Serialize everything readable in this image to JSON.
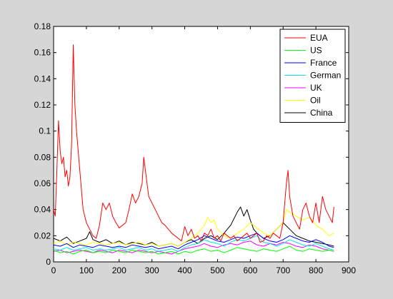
{
  "chart_data": {
    "type": "line",
    "title": "",
    "xlabel": "",
    "ylabel": "",
    "xlim": [
      0,
      900
    ],
    "ylim": [
      0,
      0.18
    ],
    "xticks": [
      0,
      100,
      200,
      300,
      400,
      500,
      600,
      700,
      800,
      900
    ],
    "yticks": [
      0,
      0.02,
      0.04,
      0.06,
      0.08,
      0.1,
      0.12,
      0.14,
      0.16,
      0.18
    ],
    "xtick_labels": [
      "0",
      "100",
      "200",
      "300",
      "400",
      "500",
      "600",
      "700",
      "800",
      "900"
    ],
    "ytick_labels": [
      "0",
      "0.02",
      "0.04",
      "0.06",
      "0.08",
      "0.1",
      "0.12",
      "0.14",
      "0.16",
      "0.18"
    ],
    "grid": false,
    "legend_position": "top-right",
    "series": [
      {
        "name": "EUA",
        "color": "#ff0000",
        "x": [
          0,
          5,
          10,
          15,
          20,
          25,
          30,
          35,
          40,
          45,
          50,
          55,
          60,
          65,
          70,
          75,
          80,
          90,
          100,
          110,
          120,
          130,
          140,
          150,
          160,
          170,
          180,
          190,
          200,
          210,
          220,
          230,
          240,
          250,
          260,
          270,
          275,
          280,
          290,
          300,
          310,
          320,
          330,
          340,
          350,
          360,
          370,
          380,
          390,
          400,
          410,
          420,
          430,
          440,
          450,
          460,
          470,
          480,
          490,
          500,
          510,
          520,
          530,
          540,
          550,
          560,
          570,
          580,
          590,
          600,
          610,
          620,
          630,
          640,
          650,
          660,
          670,
          680,
          690,
          700,
          710,
          715,
          720,
          730,
          740,
          750,
          760,
          770,
          780,
          790,
          800,
          810,
          820,
          830,
          840,
          850,
          855
        ],
        "values": [
          0.04,
          0.035,
          0.07,
          0.108,
          0.085,
          0.075,
          0.08,
          0.065,
          0.07,
          0.058,
          0.065,
          0.09,
          0.166,
          0.12,
          0.1,
          0.085,
          0.07,
          0.04,
          0.03,
          0.025,
          0.02,
          0.018,
          0.028,
          0.045,
          0.04,
          0.045,
          0.035,
          0.03,
          0.026,
          0.028,
          0.03,
          0.04,
          0.052,
          0.045,
          0.05,
          0.06,
          0.08,
          0.07,
          0.05,
          0.045,
          0.04,
          0.035,
          0.03,
          0.028,
          0.025,
          0.022,
          0.02,
          0.018,
          0.016,
          0.027,
          0.02,
          0.025,
          0.018,
          0.02,
          0.016,
          0.022,
          0.02,
          0.025,
          0.018,
          0.02,
          0.016,
          0.022,
          0.02,
          0.018,
          0.02,
          0.016,
          0.018,
          0.02,
          0.022,
          0.018,
          0.02,
          0.022,
          0.015,
          0.016,
          0.02,
          0.018,
          0.022,
          0.02,
          0.018,
          0.03,
          0.06,
          0.07,
          0.05,
          0.035,
          0.03,
          0.025,
          0.04,
          0.045,
          0.035,
          0.03,
          0.045,
          0.03,
          0.05,
          0.04,
          0.035,
          0.03,
          0.042
        ]
      },
      {
        "name": "US",
        "color": "#00ff00",
        "x": [
          0,
          20,
          40,
          60,
          80,
          100,
          120,
          140,
          160,
          180,
          200,
          220,
          240,
          260,
          280,
          300,
          320,
          340,
          360,
          380,
          400,
          420,
          440,
          460,
          480,
          500,
          520,
          540,
          560,
          580,
          600,
          620,
          640,
          660,
          680,
          700,
          720,
          740,
          760,
          780,
          800,
          820,
          840,
          855
        ],
        "values": [
          0.009,
          0.007,
          0.008,
          0.006,
          0.008,
          0.009,
          0.007,
          0.008,
          0.007,
          0.009,
          0.008,
          0.007,
          0.009,
          0.008,
          0.007,
          0.008,
          0.006,
          0.007,
          0.008,
          0.006,
          0.008,
          0.007,
          0.009,
          0.01,
          0.008,
          0.009,
          0.007,
          0.009,
          0.011,
          0.01,
          0.009,
          0.008,
          0.01,
          0.009,
          0.008,
          0.01,
          0.012,
          0.009,
          0.008,
          0.01,
          0.009,
          0.008,
          0.009,
          0.008
        ]
      },
      {
        "name": "France",
        "color": "#0000ff",
        "x": [
          0,
          20,
          40,
          60,
          80,
          100,
          120,
          140,
          160,
          180,
          200,
          220,
          240,
          260,
          280,
          300,
          320,
          340,
          360,
          380,
          400,
          420,
          440,
          460,
          480,
          500,
          520,
          540,
          560,
          580,
          600,
          620,
          640,
          660,
          680,
          700,
          720,
          740,
          760,
          780,
          800,
          820,
          840,
          855
        ],
        "values": [
          0.013,
          0.012,
          0.014,
          0.011,
          0.013,
          0.012,
          0.011,
          0.013,
          0.012,
          0.011,
          0.012,
          0.011,
          0.013,
          0.012,
          0.011,
          0.012,
          0.01,
          0.011,
          0.012,
          0.01,
          0.013,
          0.015,
          0.017,
          0.02,
          0.018,
          0.016,
          0.015,
          0.017,
          0.019,
          0.018,
          0.02,
          0.022,
          0.018,
          0.016,
          0.015,
          0.017,
          0.02,
          0.018,
          0.016,
          0.015,
          0.017,
          0.015,
          0.012,
          0.011
        ]
      },
      {
        "name": "German",
        "color": "#00e5e5",
        "x": [
          0,
          20,
          40,
          60,
          80,
          100,
          120,
          140,
          160,
          180,
          200,
          220,
          240,
          260,
          280,
          300,
          320,
          340,
          360,
          380,
          400,
          420,
          440,
          460,
          480,
          500,
          520,
          540,
          560,
          580,
          600,
          620,
          640,
          660,
          680,
          700,
          720,
          740,
          760,
          780,
          800,
          820,
          840,
          855
        ],
        "values": [
          0.01,
          0.009,
          0.011,
          0.009,
          0.01,
          0.011,
          0.009,
          0.01,
          0.009,
          0.01,
          0.011,
          0.009,
          0.01,
          0.011,
          0.009,
          0.01,
          0.008,
          0.009,
          0.01,
          0.008,
          0.011,
          0.013,
          0.014,
          0.017,
          0.015,
          0.014,
          0.012,
          0.015,
          0.017,
          0.016,
          0.018,
          0.02,
          0.015,
          0.014,
          0.012,
          0.014,
          0.017,
          0.015,
          0.013,
          0.012,
          0.014,
          0.012,
          0.01,
          0.009
        ]
      },
      {
        "name": "UK",
        "color": "#ff00ff",
        "x": [
          0,
          20,
          40,
          60,
          80,
          100,
          120,
          140,
          160,
          180,
          200,
          220,
          240,
          260,
          280,
          300,
          320,
          340,
          360,
          380,
          400,
          420,
          440,
          460,
          480,
          500,
          520,
          540,
          560,
          580,
          600,
          620,
          640,
          660,
          680,
          700,
          720,
          740,
          760,
          780,
          800,
          820,
          840,
          855
        ],
        "values": [
          0.008,
          0.009,
          0.007,
          0.008,
          0.009,
          0.008,
          0.007,
          0.009,
          0.008,
          0.007,
          0.009,
          0.008,
          0.007,
          0.009,
          0.008,
          0.007,
          0.008,
          0.007,
          0.006,
          0.008,
          0.01,
          0.011,
          0.012,
          0.014,
          0.012,
          0.011,
          0.013,
          0.014,
          0.013,
          0.015,
          0.016,
          0.013,
          0.012,
          0.014,
          0.013,
          0.015,
          0.014,
          0.012,
          0.011,
          0.013,
          0.012,
          0.01,
          0.009,
          0.008
        ]
      },
      {
        "name": "Oil",
        "color": "#ffff00",
        "x": [
          0,
          20,
          40,
          60,
          80,
          100,
          120,
          140,
          160,
          180,
          200,
          220,
          240,
          260,
          280,
          300,
          320,
          340,
          360,
          380,
          400,
          420,
          440,
          460,
          470,
          480,
          490,
          500,
          520,
          540,
          560,
          580,
          600,
          620,
          640,
          660,
          680,
          700,
          710,
          720,
          740,
          760,
          780,
          800,
          820,
          840,
          855
        ],
        "values": [
          0.014,
          0.016,
          0.013,
          0.015,
          0.014,
          0.013,
          0.015,
          0.014,
          0.013,
          0.014,
          0.015,
          0.013,
          0.014,
          0.015,
          0.013,
          0.014,
          0.012,
          0.013,
          0.014,
          0.012,
          0.015,
          0.018,
          0.022,
          0.028,
          0.034,
          0.03,
          0.032,
          0.025,
          0.02,
          0.018,
          0.022,
          0.025,
          0.03,
          0.026,
          0.022,
          0.02,
          0.025,
          0.03,
          0.04,
          0.038,
          0.035,
          0.032,
          0.034,
          0.028,
          0.025,
          0.02,
          0.022
        ]
      },
      {
        "name": "China",
        "color": "#000000",
        "x": [
          0,
          20,
          40,
          60,
          80,
          100,
          110,
          120,
          140,
          160,
          180,
          200,
          220,
          240,
          260,
          280,
          300,
          320,
          340,
          360,
          380,
          400,
          420,
          440,
          460,
          480,
          500,
          520,
          540,
          560,
          570,
          580,
          590,
          600,
          610,
          620,
          640,
          660,
          680,
          700,
          720,
          740,
          760,
          780,
          800,
          820,
          840,
          855
        ],
        "values": [
          0.018,
          0.016,
          0.019,
          0.014,
          0.016,
          0.018,
          0.023,
          0.017,
          0.015,
          0.017,
          0.014,
          0.016,
          0.013,
          0.015,
          0.014,
          0.013,
          0.015,
          0.012,
          0.013,
          0.014,
          0.012,
          0.015,
          0.017,
          0.014,
          0.018,
          0.02,
          0.017,
          0.022,
          0.028,
          0.038,
          0.042,
          0.035,
          0.04,
          0.032,
          0.025,
          0.022,
          0.018,
          0.02,
          0.025,
          0.03,
          0.025,
          0.02,
          0.018,
          0.016,
          0.015,
          0.014,
          0.013,
          0.012
        ]
      }
    ]
  }
}
